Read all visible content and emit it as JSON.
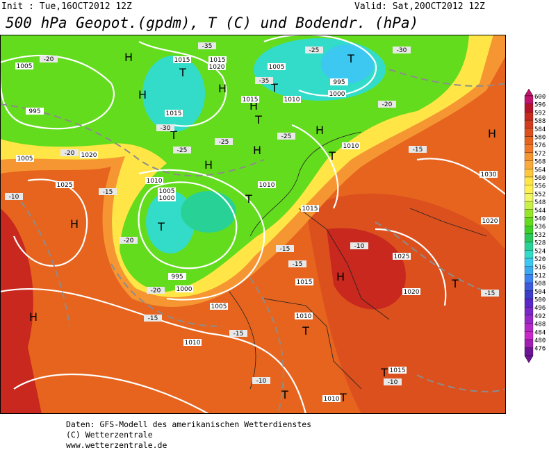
{
  "header": {
    "init": "Init : Tue,16OCT2012 12Z",
    "valid": "Valid: Sat,20OCT2012 12Z",
    "title": "500 hPa Geopot.(gpdm), T (C) und Bodendr. (hPa)"
  },
  "legend": {
    "labels": [
      "600",
      "596",
      "592",
      "588",
      "584",
      "580",
      "576",
      "572",
      "568",
      "564",
      "560",
      "556",
      "552",
      "548",
      "544",
      "540",
      "536",
      "532",
      "528",
      "524",
      "520",
      "516",
      "512",
      "508",
      "504",
      "500",
      "496",
      "492",
      "488",
      "484",
      "480",
      "476"
    ],
    "colors": [
      "#c0146e",
      "#b4142a",
      "#c8281e",
      "#d23c1e",
      "#dc501e",
      "#e6641e",
      "#f07828",
      "#f59632",
      "#faaa3c",
      "#ffc83c",
      "#ffe646",
      "#fff050",
      "#f0f564",
      "#c8f046",
      "#96e628",
      "#64dc1e",
      "#3cd228",
      "#28c85a",
      "#28d296",
      "#32dcc8",
      "#3cc8f0",
      "#3caaf0",
      "#3c82f0",
      "#3c5adc",
      "#3c3cc8",
      "#5a28c8",
      "#7828c8",
      "#9628c8",
      "#b428c8",
      "#c828c8",
      "#a01eb4",
      "#6e1496"
    ]
  },
  "map_labels": {
    "pressure_systems": [
      "H",
      "H",
      "H",
      "H",
      "H",
      "H",
      "H",
      "H",
      "H",
      "H",
      "H",
      "T",
      "T",
      "T",
      "T",
      "T",
      "T",
      "T",
      "T",
      "T",
      "T",
      "T",
      "T",
      "T"
    ],
    "isobars": [
      "1005",
      "995",
      "1005",
      "1020",
      "1025",
      "1015",
      "1020",
      "1015",
      "1005",
      "1015",
      "1010",
      "995",
      "1000",
      "1015",
      "1010",
      "1010",
      "1005",
      "1000",
      "995",
      "1000",
      "1005",
      "1010",
      "1015",
      "1010",
      "1015",
      "1020",
      "1025",
      "1020",
      "1030",
      "1010",
      "1015",
      "1010"
    ],
    "temperatures": [
      "-20",
      "-35",
      "-25",
      "-30",
      "-35",
      "-20",
      "-15",
      "-15",
      "-10",
      "-20",
      "-15",
      "-15",
      "-10",
      "-10",
      "-10",
      "-15",
      "-25",
      "-25",
      "-30",
      "-25",
      "-20",
      "-15",
      "-15",
      "-20"
    ]
  },
  "footer": {
    "lines": [
      "Daten: GFS-Modell des amerikanischen Wetterdienstes",
      "(C) Wetterzentrale",
      "www.wetterzentrale.de"
    ]
  }
}
